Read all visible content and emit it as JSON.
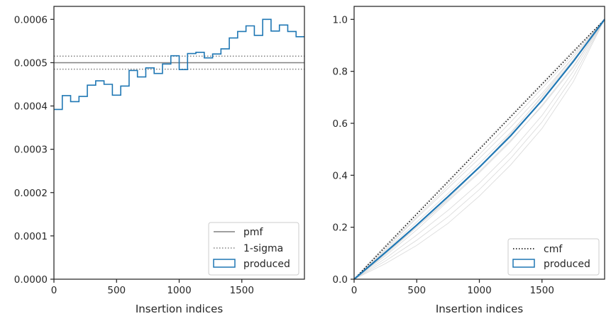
{
  "chart_data": [
    {
      "type": "histogram-step",
      "xlabel": "Insertion indices",
      "ylabel": "",
      "xlim": [
        0,
        2000
      ],
      "ylim": [
        0,
        0.00063
      ],
      "x_ticks": [
        0,
        500,
        1000,
        1500
      ],
      "x_tick_labels": [
        "0",
        "500",
        "1000",
        "1500"
      ],
      "y_ticks": [
        0,
        0.0001,
        0.0002,
        0.0003,
        0.0004,
        0.0005,
        0.0006
      ],
      "y_tick_labels": [
        "0.0000",
        "0.0001",
        "0.0002",
        "0.0003",
        "0.0004",
        "0.0005",
        "0.0006"
      ],
      "bin_width": 66.67,
      "pmf": 0.0005,
      "sigma_band": [
        0.000485,
        0.000515
      ],
      "series": [
        {
          "name": "produced",
          "values": [
            0.000392,
            0.000424,
            0.00041,
            0.000422,
            0.000448,
            0.000458,
            0.00045,
            0.000425,
            0.000446,
            0.000482,
            0.000467,
            0.000488,
            0.000475,
            0.000497,
            0.000516,
            0.000484,
            0.000521,
            0.000524,
            0.000511,
            0.00052,
            0.000532,
            0.000557,
            0.000572,
            0.000585,
            0.000563,
            0.0006,
            0.000573,
            0.000587,
            0.000572,
            0.00056
          ]
        }
      ],
      "legend": {
        "position": "lower right",
        "entries": [
          {
            "label": "pmf",
            "style": "solid",
            "color": "#808080"
          },
          {
            "label": "1-sigma",
            "style": "dotted",
            "color": "#808080"
          },
          {
            "label": "produced",
            "style": "box",
            "color": "#1f77b4"
          }
        ]
      },
      "colors": {
        "produced": "#1f77b4",
        "pmf": "#808080"
      }
    },
    {
      "type": "line",
      "xlabel": "Insertion indices",
      "ylabel": "",
      "xlim": [
        0,
        2000
      ],
      "ylim": [
        0,
        1.05
      ],
      "x_ticks": [
        0,
        500,
        1000,
        1500
      ],
      "x_tick_labels": [
        "0",
        "500",
        "1000",
        "1500"
      ],
      "y_ticks": [
        0,
        0.2,
        0.4,
        0.6,
        0.8,
        1.0
      ],
      "y_tick_labels": [
        "0.0",
        "0.2",
        "0.4",
        "0.6",
        "0.8",
        "1.0"
      ],
      "x": [
        0,
        250,
        500,
        750,
        1000,
        1250,
        1500,
        1750,
        2000
      ],
      "series": [
        {
          "name": "cmf",
          "values": [
            0,
            0.125,
            0.25,
            0.375,
            0.5,
            0.625,
            0.75,
            0.875,
            1.0
          ]
        },
        {
          "name": "produced",
          "values": [
            0,
            0.103,
            0.208,
            0.318,
            0.431,
            0.552,
            0.688,
            0.838,
            1.0
          ]
        }
      ],
      "background_curves": [
        [
          0,
          0.08,
          0.17,
          0.265,
          0.37,
          0.49,
          0.63,
          0.8,
          1.0
        ],
        [
          0,
          0.06,
          0.13,
          0.215,
          0.32,
          0.44,
          0.58,
          0.76,
          1.0
        ],
        [
          0,
          0.09,
          0.19,
          0.3,
          0.41,
          0.53,
          0.67,
          0.82,
          1.0
        ],
        [
          0,
          0.11,
          0.22,
          0.33,
          0.445,
          0.565,
          0.7,
          0.845,
          1.0
        ],
        [
          0,
          0.12,
          0.24,
          0.36,
          0.48,
          0.605,
          0.735,
          0.865,
          1.0
        ],
        [
          0,
          0.13,
          0.255,
          0.38,
          0.505,
          0.63,
          0.755,
          0.88,
          1.0
        ],
        [
          0,
          0.1,
          0.2,
          0.305,
          0.415,
          0.535,
          0.665,
          0.815,
          1.0
        ],
        [
          0,
          0.095,
          0.2,
          0.31,
          0.43,
          0.56,
          0.705,
          0.855,
          1.0
        ],
        [
          0,
          0.07,
          0.15,
          0.24,
          0.345,
          0.465,
          0.605,
          0.78,
          1.0
        ],
        [
          0,
          0.115,
          0.235,
          0.35,
          0.465,
          0.585,
          0.715,
          0.855,
          1.0
        ]
      ],
      "legend": {
        "position": "lower right",
        "entries": [
          {
            "label": "cmf",
            "style": "dotted",
            "color": "#000000"
          },
          {
            "label": "produced",
            "style": "box",
            "color": "#1f77b4"
          }
        ]
      },
      "colors": {
        "produced": "#1f77b4",
        "cmf": "#000000",
        "background": "#d9d9d9"
      }
    }
  ]
}
